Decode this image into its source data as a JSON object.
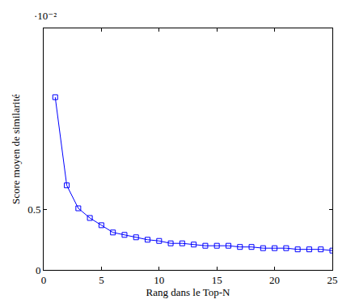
{
  "chart_data": {
    "type": "line",
    "x_label": "Rang dans le Top-N",
    "y_label": "Score moyen de similarité",
    "annotations": [
      "·10⁻²"
    ],
    "x": [
      1,
      2,
      3,
      4,
      5,
      6,
      7,
      8,
      9,
      10,
      11,
      12,
      13,
      14,
      15,
      16,
      17,
      18,
      19,
      20,
      21,
      22,
      23,
      24,
      25
    ],
    "values": [
      1.43,
      0.7,
      0.51,
      0.43,
      0.37,
      0.31,
      0.29,
      0.27,
      0.25,
      0.24,
      0.22,
      0.22,
      0.21,
      0.2,
      0.2,
      0.2,
      0.19,
      0.19,
      0.18,
      0.18,
      0.18,
      0.17,
      0.17,
      0.17,
      0.16
    ],
    "color": "#0000ff",
    "marker": "square-open",
    "xlim": [
      0,
      25
    ],
    "xticks": [
      0,
      5,
      10,
      15,
      20,
      25
    ],
    "ylim": [
      0,
      2
    ],
    "yticks": [
      0,
      0.5
    ],
    "grid": false
  }
}
